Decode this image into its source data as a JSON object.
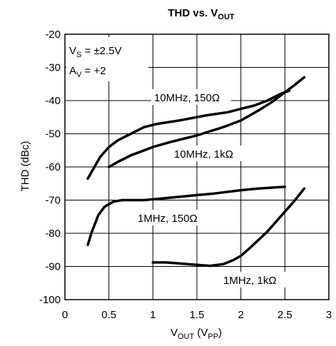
{
  "chart_data": {
    "type": "line",
    "title": {
      "main": "THD vs. V",
      "sub": "OUT"
    },
    "xlabel": {
      "main": "V",
      "sub1": "OUT",
      "mid": " (V",
      "sub2": "PP",
      "end": ")"
    },
    "ylabel": "THD (dBc)",
    "xlim": [
      0,
      3
    ],
    "ylim": [
      -100,
      -20
    ],
    "xticks": [
      0,
      0.5,
      1,
      1.5,
      2,
      2.5,
      3
    ],
    "xtick_labels": [
      "0",
      "0.5",
      "1",
      "1.5",
      "2",
      "2.5",
      "3"
    ],
    "yticks": [
      -100,
      -90,
      -80,
      -70,
      -60,
      -50,
      -40,
      -30,
      -20
    ],
    "ytick_labels": [
      "-100",
      "-90",
      "-80",
      "-70",
      "-60",
      "-50",
      "-40",
      "-30",
      "-20"
    ],
    "grid": true,
    "conditions": [
      {
        "main": "V",
        "sub": "S",
        "rest": " = ±2.5V"
      },
      {
        "main": "A",
        "sub": "V",
        "rest": " = +2"
      }
    ],
    "series": [
      {
        "name": "10MHz, 150Ω",
        "x": [
          0.26,
          0.4,
          0.5,
          0.6,
          0.75,
          0.9,
          1.05,
          1.3,
          1.6,
          1.85,
          2.0,
          2.15,
          2.3,
          2.45,
          2.55
        ],
        "y": [
          -63.5,
          -57.0,
          -54.0,
          -52.0,
          -50.0,
          -48.0,
          -47.0,
          -46.0,
          -44.5,
          -43.5,
          -42.5,
          -41.5,
          -40.0,
          -38.0,
          -37.0
        ]
      },
      {
        "name": "10MHz, 1kΩ",
        "x": [
          0.5,
          0.6,
          0.75,
          0.9,
          1.0,
          1.2,
          1.5,
          1.8,
          2.0,
          2.2,
          2.35,
          2.5,
          2.6,
          2.72
        ],
        "y": [
          -60.0,
          -58.5,
          -56.5,
          -55.0,
          -54.0,
          -52.5,
          -50.5,
          -48.0,
          -46.0,
          -43.0,
          -40.5,
          -37.5,
          -35.5,
          -33.0
        ]
      },
      {
        "name": "1MHz, 150Ω",
        "x": [
          0.26,
          0.3,
          0.38,
          0.45,
          0.55,
          0.65,
          0.75,
          0.9,
          1.1,
          1.3,
          1.5,
          1.7,
          2.0,
          2.2,
          2.5
        ],
        "y": [
          -83.5,
          -80.0,
          -74.5,
          -72.0,
          -70.5,
          -70.0,
          -70.0,
          -70.0,
          -69.5,
          -69.0,
          -68.5,
          -68.0,
          -67.0,
          -66.5,
          -66.0
        ]
      },
      {
        "name": "1MHz, 1kΩ",
        "x": [
          1.0,
          1.15,
          1.3,
          1.5,
          1.65,
          1.8,
          1.92,
          2.0,
          2.1,
          2.2,
          2.3,
          2.4,
          2.5,
          2.6,
          2.72
        ],
        "y": [
          -88.8,
          -88.8,
          -89.1,
          -89.5,
          -89.8,
          -89.3,
          -88.0,
          -86.8,
          -84.5,
          -82.0,
          -79.5,
          -76.5,
          -73.5,
          -70.5,
          -66.5
        ]
      }
    ],
    "annotations": [
      "10MHz, 150Ω",
      "10MHz, 1kΩ",
      "1MHz, 150Ω",
      "1MHz, 1kΩ"
    ]
  }
}
